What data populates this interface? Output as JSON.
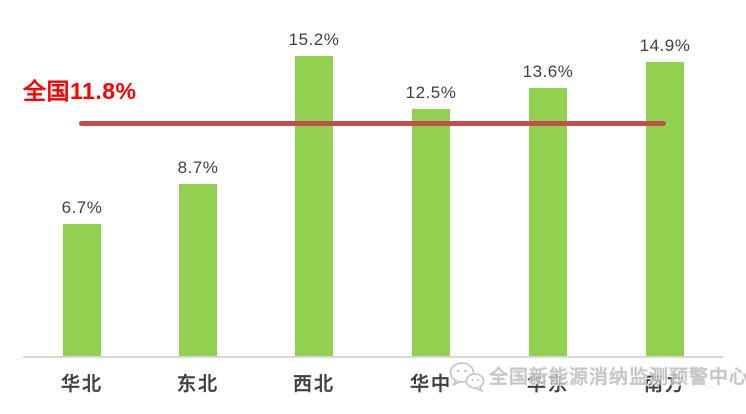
{
  "chart_data": {
    "type": "bar",
    "title": "",
    "xlabel": "",
    "ylabel": "",
    "categories": [
      "华北",
      "东北",
      "西北",
      "华中",
      "华东",
      "南方"
    ],
    "values": [
      6.7,
      8.7,
      15.2,
      12.5,
      13.6,
      14.9
    ],
    "value_labels": [
      "6.7%",
      "8.7%",
      "15.2%",
      "12.5%",
      "13.6%",
      "14.9%"
    ],
    "unit": "%",
    "ylim": [
      0,
      18
    ],
    "grid": false,
    "legend_position": "none",
    "bar_color": "#92d050",
    "axis_color": "#d9d9d9",
    "value_label_color": "#404040",
    "category_label_color": "#404040",
    "ref_line": {
      "value": 11.8,
      "label": "全国11.8%",
      "line_color": "#c0504d",
      "label_color": "#ff0000"
    }
  },
  "watermark": {
    "icon": "wechat-icon",
    "text": "全国新能源消纳监测预警中心",
    "color": "#bdbdbd"
  }
}
